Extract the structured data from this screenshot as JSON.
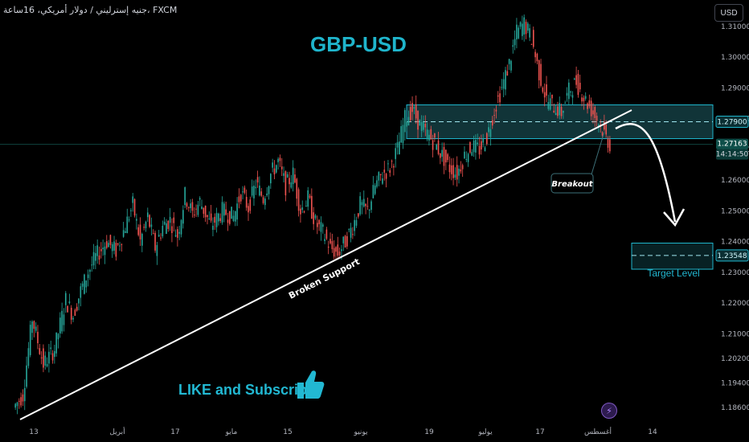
{
  "header": {
    "symbol_text": "جنيه إسترليني / دولار أمريكي، 16ساعة، FXCM",
    "currency_button": "USD"
  },
  "title": "GBP-USD",
  "footer": {
    "like_text": "LIKE and Subscribe",
    "thumb_icon": "thumbs-up-icon",
    "lightning_icon": "lightning-icon"
  },
  "colors": {
    "up": "#26a69a",
    "down": "#ef5350",
    "accent": "#1fb5cc",
    "zone_fill": "#1f5f66",
    "line": "#ffffff"
  },
  "chart_data": {
    "type": "candlestick",
    "y_ticks": [
      "1.31000",
      "1.30000",
      "1.29000",
      "1.28000",
      "1.27000",
      "1.26000",
      "1.25000",
      "1.24000",
      "1.23000",
      "1.22000",
      "1.21000",
      "1.20200",
      "1.19400",
      "1.18600"
    ],
    "x_ticks": [
      "13",
      "أبريل",
      "17",
      "مايو",
      "15",
      "يونيو",
      "19",
      "يوليو",
      "17",
      "أغسطس",
      "14"
    ],
    "price_labels": {
      "resistance": "1.27900",
      "current": "1.27163",
      "countdown": "14:14:50",
      "target": "1.23548"
    },
    "annotations": {
      "support_line": "Broken Support",
      "breakout": "Breakout",
      "target": "Target Level"
    },
    "resistance_zone": [
      1.2735,
      1.2845
    ],
    "target_zone": [
      1.231,
      1.2395
    ],
    "support_line": {
      "from": [
        "13",
        1.186
      ],
      "to": [
        "17",
        1.282
      ]
    },
    "price_path": [
      [
        0,
        1.186
      ],
      [
        5,
        1.19
      ],
      [
        10,
        1.215
      ],
      [
        16,
        1.2
      ],
      [
        22,
        1.205
      ],
      [
        28,
        1.221
      ],
      [
        32,
        1.216
      ],
      [
        36,
        1.224
      ],
      [
        40,
        1.23
      ],
      [
        44,
        1.235
      ],
      [
        50,
        1.24
      ],
      [
        55,
        1.237
      ],
      [
        60,
        1.245
      ],
      [
        64,
        1.252
      ],
      [
        68,
        1.24
      ],
      [
        72,
        1.248
      ],
      [
        76,
        1.238
      ],
      [
        80,
        1.245
      ],
      [
        84,
        1.247
      ],
      [
        88,
        1.242
      ],
      [
        92,
        1.255
      ],
      [
        96,
        1.249
      ],
      [
        100,
        1.253
      ],
      [
        106,
        1.245
      ],
      [
        112,
        1.25
      ],
      [
        118,
        1.248
      ],
      [
        122,
        1.256
      ],
      [
        126,
        1.251
      ],
      [
        130,
        1.259
      ],
      [
        134,
        1.254
      ],
      [
        138,
        1.262
      ],
      [
        142,
        1.266
      ],
      [
        146,
        1.258
      ],
      [
        150,
        1.262
      ],
      [
        154,
        1.25
      ],
      [
        158,
        1.254
      ],
      [
        162,
        1.246
      ],
      [
        166,
        1.243
      ],
      [
        170,
        1.238
      ],
      [
        174,
        1.236
      ],
      [
        178,
        1.24
      ],
      [
        182,
        1.245
      ],
      [
        186,
        1.252
      ],
      [
        190,
        1.25
      ],
      [
        194,
        1.258
      ],
      [
        198,
        1.262
      ],
      [
        202,
        1.264
      ],
      [
        206,
        1.27
      ],
      [
        210,
        1.28
      ],
      [
        214,
        1.283
      ],
      [
        218,
        1.278
      ],
      [
        222,
        1.275
      ],
      [
        226,
        1.272
      ],
      [
        230,
        1.268
      ],
      [
        234,
        1.264
      ],
      [
        238,
        1.262
      ],
      [
        242,
        1.268
      ],
      [
        246,
        1.271
      ],
      [
        250,
        1.27
      ],
      [
        254,
        1.274
      ],
      [
        258,
        1.283
      ],
      [
        262,
        1.29
      ],
      [
        266,
        1.298
      ],
      [
        270,
        1.308
      ],
      [
        274,
        1.311
      ],
      [
        278,
        1.306
      ],
      [
        282,
        1.295
      ],
      [
        286,
        1.286
      ],
      [
        290,
        1.284
      ],
      [
        294,
        1.282
      ],
      [
        298,
        1.289
      ],
      [
        302,
        1.292
      ],
      [
        306,
        1.287
      ],
      [
        310,
        1.283
      ],
      [
        314,
        1.279
      ],
      [
        318,
        1.274
      ],
      [
        320,
        1.2716
      ]
    ],
    "forecast_path": [
      [
        1.2755
      ],
      [
        1.2375
      ]
    ]
  }
}
